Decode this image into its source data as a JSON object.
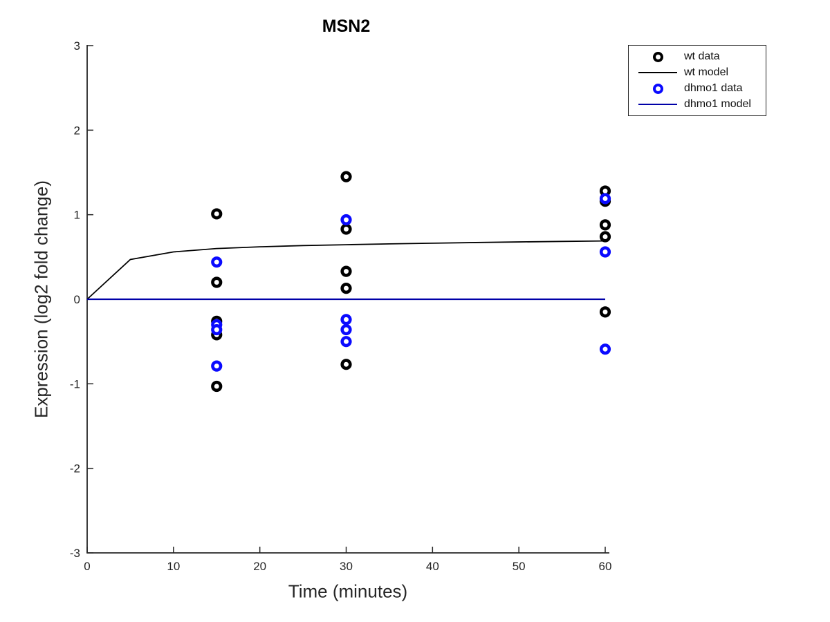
{
  "title": "MSN2",
  "axes": {
    "xlabel": "Time (minutes)",
    "ylabel": "Expression (log2 fold change)",
    "xlim": [
      0,
      60
    ],
    "ylim": [
      -3,
      3
    ],
    "xticks": [
      0,
      10,
      20,
      30,
      40,
      50,
      60
    ],
    "yticks": [
      -3,
      -2,
      -1,
      0,
      1,
      2,
      3
    ],
    "axis_color": "#262626",
    "box": "off",
    "tick_direction": "in"
  },
  "legend": {
    "position": "upper-right-outside",
    "entries": [
      {
        "label": "wt data",
        "sample": "marker",
        "color": "#000000"
      },
      {
        "label": "wt model",
        "sample": "line",
        "color": "#000000"
      },
      {
        "label": "dhmo1 data",
        "sample": "marker",
        "color": "#0a0aff"
      },
      {
        "label": "dhmo1 model",
        "sample": "line",
        "color": "#0000a8"
      }
    ]
  },
  "chart_data": {
    "type": "scatter",
    "title": "MSN2",
    "xlabel": "Time (minutes)",
    "ylabel": "Expression (log2 fold change)",
    "xlim": [
      0,
      60
    ],
    "ylim": [
      -3,
      3
    ],
    "grid": false,
    "legend_position": "outside upper right",
    "series": [
      {
        "name": "wt data",
        "kind": "scatter",
        "marker": "open-circle-thick",
        "color": "#000000",
        "points": [
          [
            15,
            1.01
          ],
          [
            15,
            0.2
          ],
          [
            15,
            -0.26
          ],
          [
            15,
            -0.42
          ],
          [
            15,
            -1.03
          ],
          [
            30,
            1.45
          ],
          [
            30,
            0.83
          ],
          [
            30,
            0.33
          ],
          [
            30,
            0.13
          ],
          [
            30,
            -0.77
          ],
          [
            60,
            1.28
          ],
          [
            60,
            1.16
          ],
          [
            60,
            0.88
          ],
          [
            60,
            0.74
          ],
          [
            60,
            -0.15
          ]
        ]
      },
      {
        "name": "wt model",
        "kind": "line",
        "color": "#000000",
        "width": 1.8,
        "points": [
          [
            0,
            0
          ],
          [
            5,
            0.47
          ],
          [
            10,
            0.56
          ],
          [
            15,
            0.6
          ],
          [
            20,
            0.62
          ],
          [
            25,
            0.635
          ],
          [
            30,
            0.645
          ],
          [
            35,
            0.655
          ],
          [
            40,
            0.663
          ],
          [
            45,
            0.671
          ],
          [
            50,
            0.678
          ],
          [
            55,
            0.684
          ],
          [
            60,
            0.69
          ]
        ]
      },
      {
        "name": "dhmo1 data",
        "kind": "scatter",
        "marker": "open-circle-thick",
        "color": "#0a0aff",
        "points": [
          [
            15,
            0.44
          ],
          [
            15,
            -0.3
          ],
          [
            15,
            -0.36
          ],
          [
            15,
            -0.79
          ],
          [
            30,
            0.94
          ],
          [
            30,
            -0.24
          ],
          [
            30,
            -0.36
          ],
          [
            30,
            -0.5
          ],
          [
            60,
            1.19
          ],
          [
            60,
            0.56
          ],
          [
            60,
            -0.59
          ]
        ]
      },
      {
        "name": "dhmo1 model",
        "kind": "line",
        "color": "#0000a8",
        "width": 2.2,
        "points": [
          [
            0,
            0
          ],
          [
            60,
            0
          ]
        ]
      }
    ]
  }
}
